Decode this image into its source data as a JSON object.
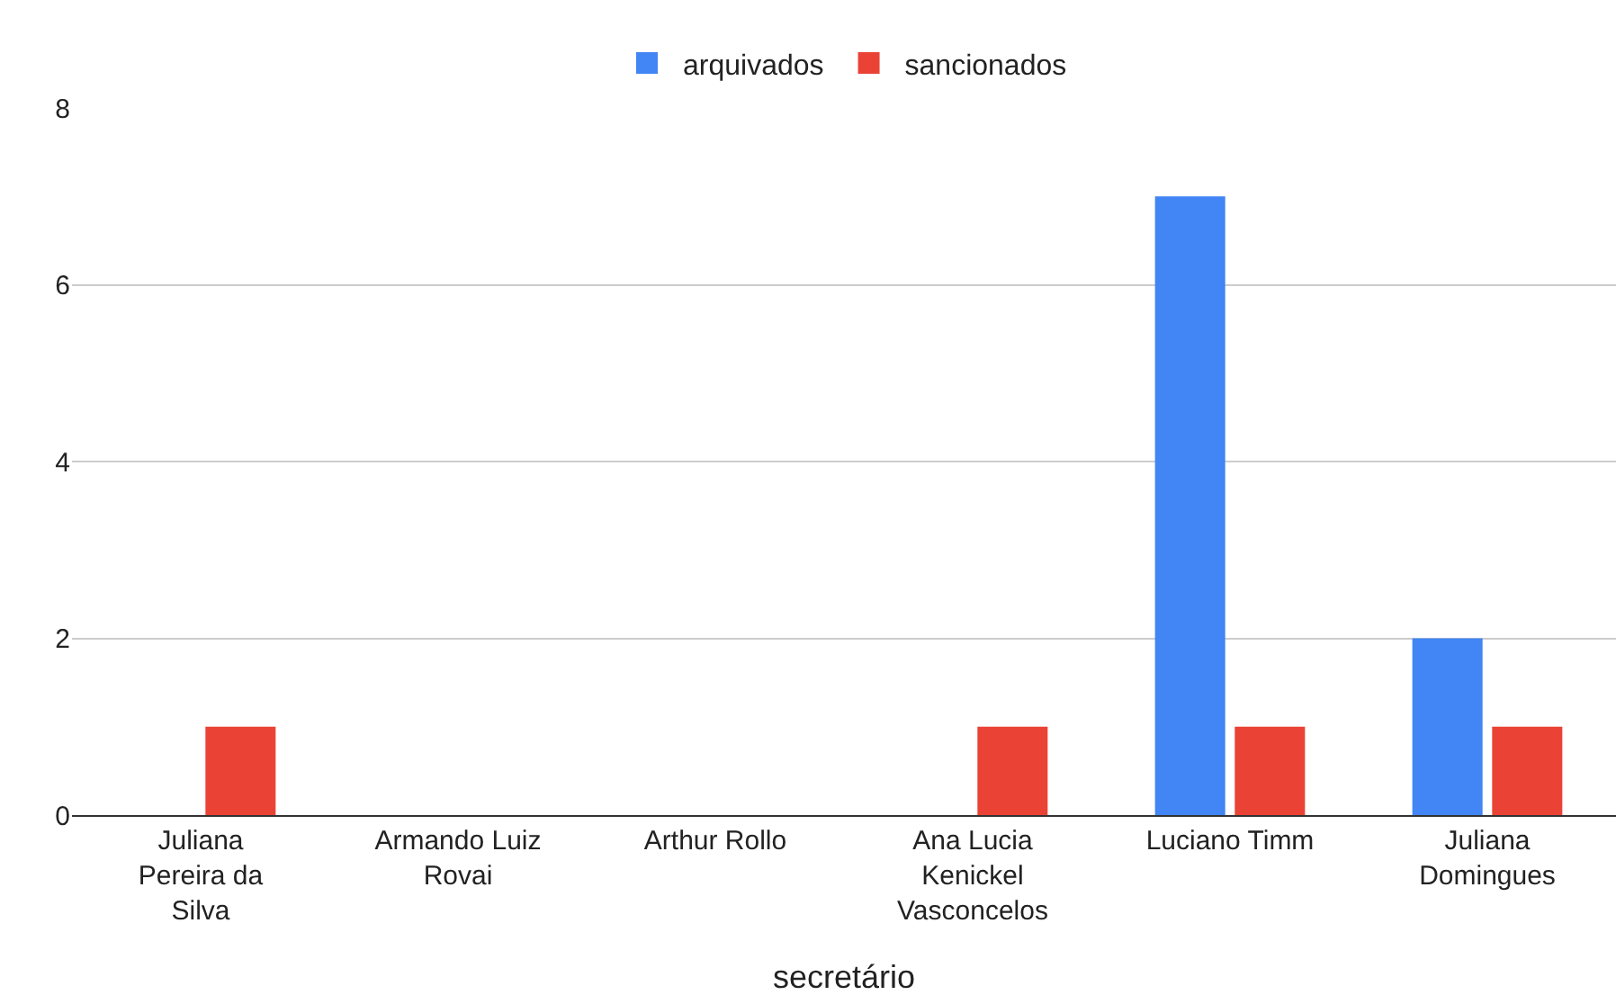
{
  "chart_data": {
    "type": "bar",
    "xlabel": "secretário",
    "categories": [
      "Juliana Pereira da Silva",
      "Armando Luiz Rovai",
      "Arthur Rollo",
      "Ana Lucia Kenickel Vasconcelos",
      "Luciano Timm",
      "Juliana Domingues"
    ],
    "series": [
      {
        "name": "arquivados",
        "color": "#4285f4",
        "values": [
          0,
          0,
          0,
          0,
          7,
          2
        ]
      },
      {
        "name": "sancionados",
        "color": "#ea4335",
        "values": [
          1,
          0,
          0,
          1,
          1,
          1
        ]
      }
    ],
    "ylim": [
      0,
      8
    ],
    "yticks": [
      0,
      2,
      4,
      6,
      8
    ],
    "grid": "y",
    "legend": "top"
  }
}
